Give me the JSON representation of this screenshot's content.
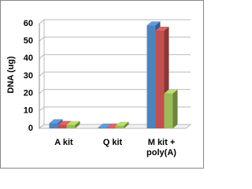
{
  "chart_data": {
    "type": "bar3d",
    "y_label": "DNA (ug)",
    "categories": [
      "A kit",
      "Q kit",
      "M kit + poly(A)"
    ],
    "series": [
      {
        "color": "#4f81bd",
        "values": [
          3,
          0.5,
          59
        ]
      },
      {
        "color": "#c0504d",
        "values": [
          2,
          0.5,
          56
        ]
      },
      {
        "color": "#9bbb59",
        "values": [
          2,
          1.5,
          20
        ]
      }
    ],
    "ylim": [
      0,
      60
    ],
    "yticks": [
      0,
      10,
      20,
      30,
      40,
      50,
      60
    ],
    "grid": true
  }
}
